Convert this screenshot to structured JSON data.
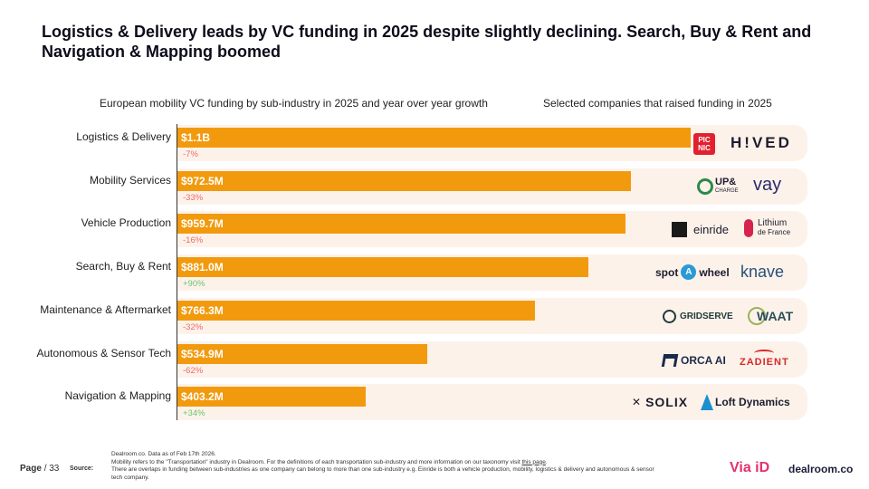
{
  "headline": "Logistics & Delivery leads by VC funding in 2025 despite slightly declining. Search, Buy & Rent and Navigation & Mapping boomed",
  "left_subtitle": "European mobility VC funding by sub-industry in 2025 and year over year growth",
  "right_subtitle": "Selected companies that raised funding in 2025",
  "colors": {
    "bar": "#f29a0e",
    "row_bg": "#fdf2ea",
    "negative": "#ef6a6a",
    "positive": "#6cc46c"
  },
  "chart_data": {
    "type": "bar",
    "orientation": "horizontal",
    "title": "European mobility VC funding by sub-industry in 2025 and year over year growth",
    "unit": "USD millions",
    "xlim": [
      0,
      1350
    ],
    "categories": [
      "Logistics & Delivery",
      "Mobility Services",
      "Vehicle Production",
      "Search, Buy & Rent",
      "Maintenance & Aftermarket",
      "Autonomous & Sensor Tech",
      "Navigation & Mapping"
    ],
    "values": [
      1100,
      972.5,
      959.7,
      881.0,
      766.3,
      534.9,
      403.2
    ],
    "value_labels": [
      "$1.1B",
      "$972.5M",
      "$959.7M",
      "$881.0M",
      "$766.3M",
      "$534.9M",
      "$403.2M"
    ],
    "growth": [
      "-7%",
      "-33%",
      "-16%",
      "+90%",
      "-32%",
      "-62%",
      "+34%"
    ],
    "companies": [
      [
        "PIC NIC",
        "H!VED"
      ],
      [
        "UP& CHARGE",
        "vay"
      ],
      [
        "einride",
        "Lithium de France"
      ],
      [
        "spot a wheel",
        "knave"
      ],
      [
        "GRIDSERVE",
        "WAAT"
      ],
      [
        "ORCA AI",
        "ZADIENT"
      ],
      [
        "SOLIX",
        "Loft Dynamics"
      ]
    ]
  },
  "logos": {
    "picnic_top": "PIC",
    "picnic_bottom": "NIC",
    "hived": "H!VED",
    "upcharge_top": "UP&",
    "upcharge_bottom": "CHARGE",
    "vay": "vay",
    "einride": "einride",
    "lithium_top": "Lithium",
    "lithium_bottom": "de France",
    "spot": "spot",
    "a": "A",
    "wheel": "wheel",
    "knave": "knave",
    "gridserve": "GRIDSERVE",
    "waat": "WAAT",
    "orca": "ORCA AI",
    "zadient": "ZADIENT",
    "solix": "SOLIX",
    "loft": "Loft Dynamics"
  },
  "footer": {
    "page_label": "Page",
    "page_number": "/ 33",
    "source_label": "Source:",
    "note1": "Dealroom.co. Data as of Feb 17th 2026.",
    "note2": "Mobility refers to the \"Transportation\" industry in Dealroom. For the definitions of each transportation sub-industry and more information on our taxonomy visit",
    "note2_link": "this page",
    "note3": "There are overlaps in funding between sub-industries as one company can belong to more than one sub-industry e.g. Einride  is both a vehicle production, mobility, logistics & delivery and autonomous & sensor tech company.",
    "brand1": "Via iD",
    "brand2": "dealroom.co"
  }
}
